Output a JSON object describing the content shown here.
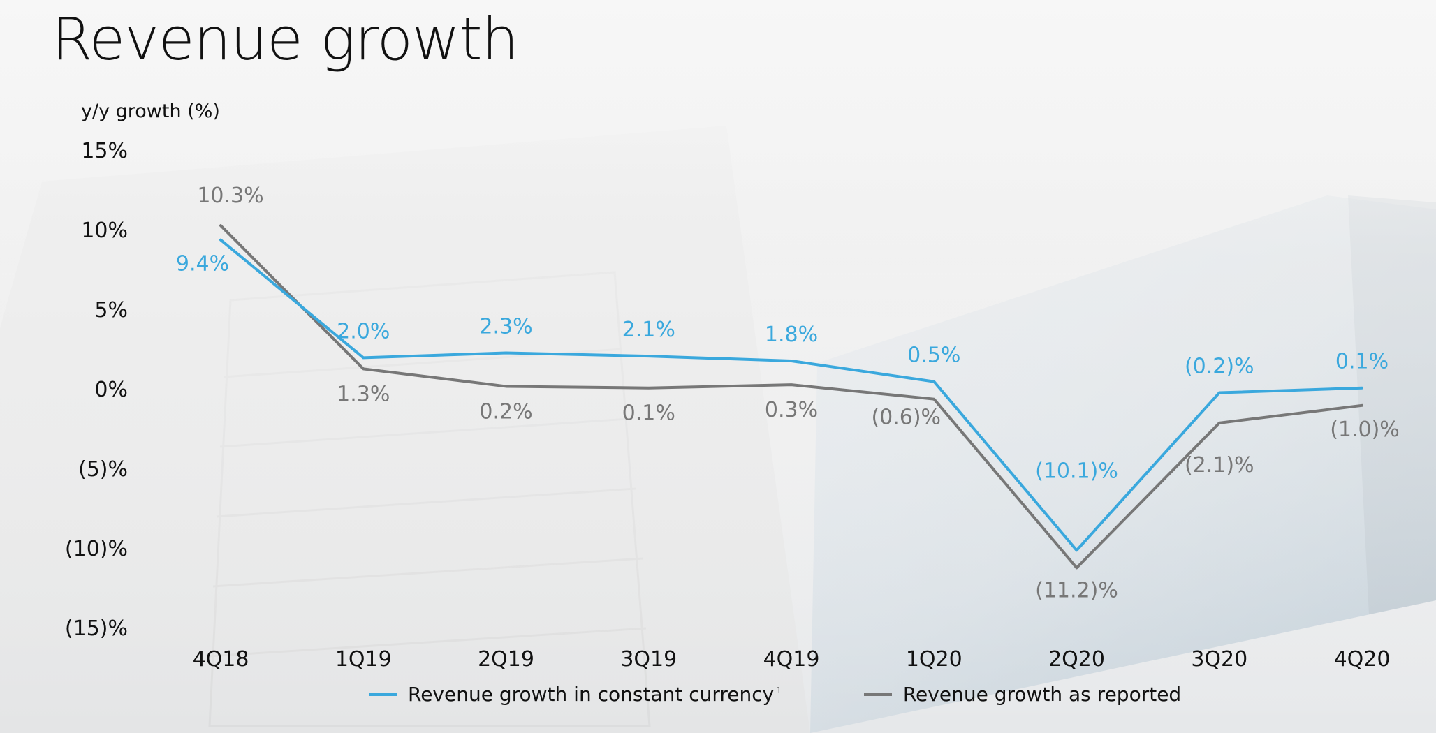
{
  "title": "Revenue growth",
  "colors": {
    "constant_currency": "#3aa8dd",
    "as_reported": "#777777"
  },
  "chart_data": {
    "type": "line",
    "title": "",
    "ylabel": "y/y growth (%)",
    "xlabel": "",
    "categories": [
      "4Q18",
      "1Q19",
      "2Q19",
      "3Q19",
      "4Q19",
      "1Q20",
      "2Q20",
      "3Q20",
      "4Q20"
    ],
    "ylim": [
      -15,
      15
    ],
    "y_ticks": [
      15,
      10,
      5,
      0,
      -5,
      -10,
      -15
    ],
    "y_tick_labels": [
      "15%",
      "10%",
      "5%",
      "0%",
      "(5)%",
      "(10)%",
      "(15)%"
    ],
    "grid": false,
    "legend_position": "bottom",
    "series": [
      {
        "name": "Revenue growth in constant currency",
        "footnote": "1",
        "color": "#3aa8dd",
        "values": [
          9.4,
          2.0,
          2.3,
          2.1,
          1.8,
          0.5,
          -10.1,
          -0.2,
          0.1
        ],
        "labels": [
          "9.4%",
          "2.0%",
          "2.3%",
          "2.1%",
          "1.8%",
          "0.5%",
          "(10.1)%",
          "(0.2)%",
          "0.1%"
        ]
      },
      {
        "name": "Revenue growth as reported",
        "color": "#777777",
        "values": [
          10.3,
          1.3,
          0.2,
          0.1,
          0.3,
          -0.6,
          -11.2,
          -2.1,
          -1.0
        ],
        "labels": [
          "10.3%",
          "1.3%",
          "0.2%",
          "0.1%",
          "0.3%",
          "(0.6)%",
          "(11.2)%",
          "(2.1)%",
          "(1.0)%"
        ]
      }
    ]
  }
}
